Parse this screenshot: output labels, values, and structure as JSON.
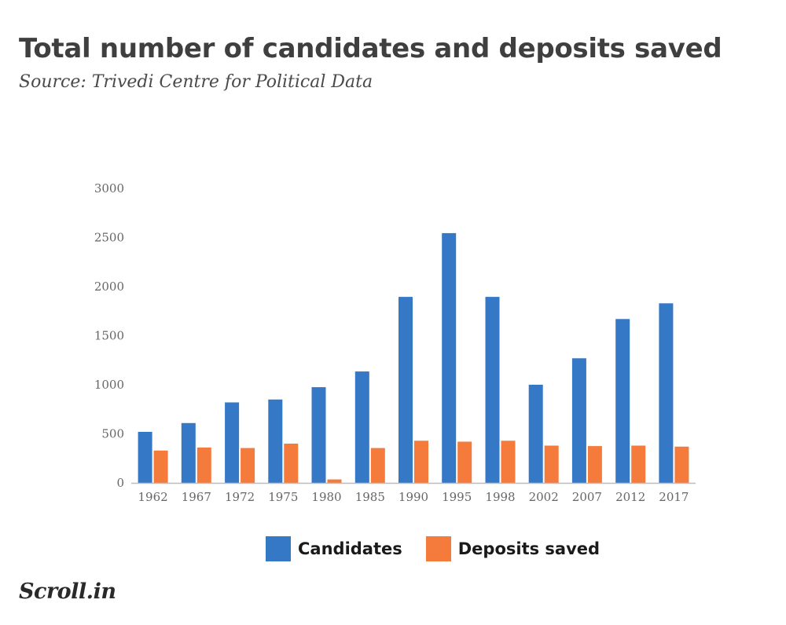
{
  "header": {
    "title": "Total number of candidates and deposits saved",
    "subtitle": "Source: Trivedi Centre for Political Data"
  },
  "logo": {
    "text": "Scroll.in"
  },
  "colors": {
    "candidates": "#3478c6",
    "deposits": "#f47b3b",
    "axis": "#bbbbbb",
    "tick_text": "#666666"
  },
  "chart_data": {
    "type": "bar",
    "categories": [
      "1962",
      "1967",
      "1972",
      "1975",
      "1980",
      "1985",
      "1990",
      "1995",
      "1998",
      "2002",
      "2007",
      "2012",
      "2017"
    ],
    "series": [
      {
        "name": "Candidates",
        "values": [
          520,
          610,
          820,
          850,
          975,
          1135,
          1895,
          2545,
          1895,
          1000,
          1270,
          1670,
          1830
        ]
      },
      {
        "name": "Deposits saved",
        "values": [
          330,
          360,
          355,
          400,
          35,
          355,
          430,
          420,
          430,
          380,
          375,
          380,
          370
        ]
      }
    ],
    "yticks": [
      "0",
      "500",
      "1000",
      "1500",
      "2000",
      "2500",
      "3000"
    ],
    "ylim": [
      0,
      3000
    ],
    "xlabel": "",
    "ylabel": "",
    "grid": false,
    "legend_position": "bottom"
  }
}
